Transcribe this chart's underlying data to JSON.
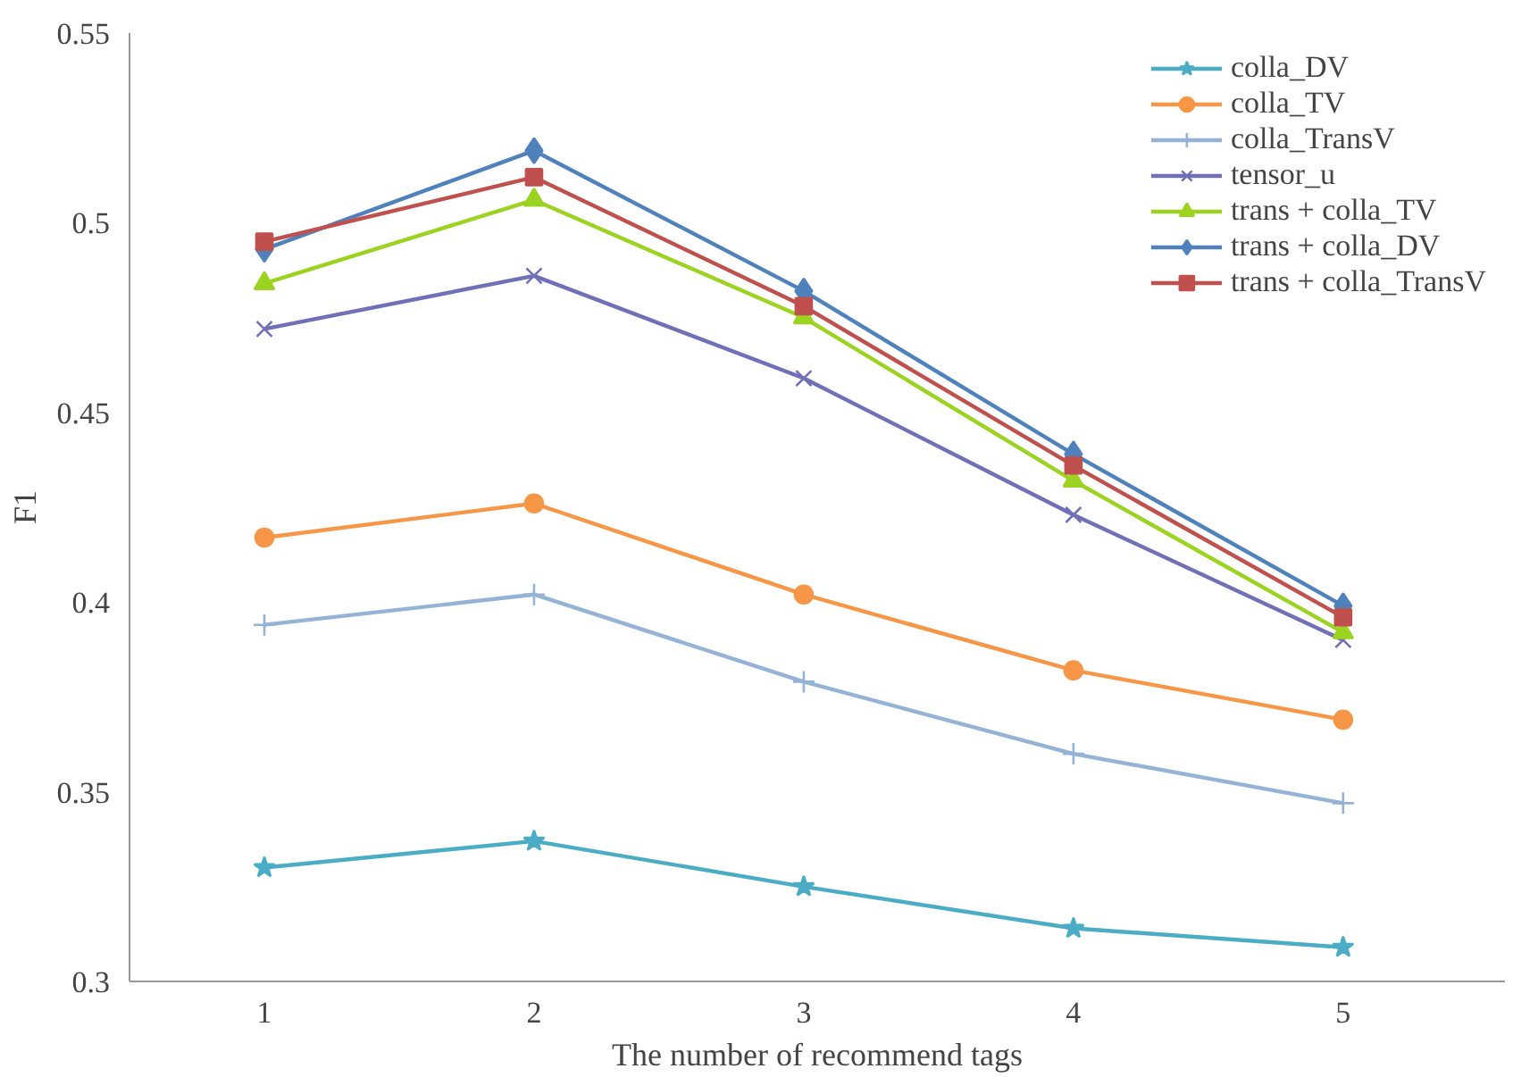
{
  "chart_data": {
    "type": "line",
    "xlabel": "The number of recommend tags",
    "ylabel": "F1",
    "categories": [
      "1",
      "2",
      "3",
      "4",
      "5"
    ],
    "ylim": [
      0.3,
      0.55
    ],
    "yticks": [
      0.3,
      0.35,
      0.4,
      0.45,
      0.5,
      0.55
    ],
    "grid": false,
    "legend": "top right",
    "series": [
      {
        "name": "colla_DV",
        "color": "#4bacc6",
        "marker": "star",
        "values": [
          0.33,
          0.337,
          0.325,
          0.314,
          0.309
        ]
      },
      {
        "name": "colla_TV",
        "color": "#f79646",
        "marker": "circle",
        "values": [
          0.417,
          0.426,
          0.402,
          0.382,
          0.369
        ]
      },
      {
        "name": "colla_TransV",
        "color": "#95b3d7",
        "marker": "cross",
        "values": [
          0.394,
          0.402,
          0.379,
          0.36,
          0.347
        ]
      },
      {
        "name": "tensor_u",
        "color": "#7070b8",
        "marker": "x",
        "values": [
          0.472,
          0.486,
          0.459,
          0.423,
          0.39
        ]
      },
      {
        "name": "trans + colla_TV",
        "color": "#9bd320",
        "marker": "triangle",
        "values": [
          0.484,
          0.506,
          0.475,
          0.432,
          0.392
        ]
      },
      {
        "name": "trans + colla_DV",
        "color": "#4f81bd",
        "marker": "diamond",
        "values": [
          0.493,
          0.519,
          0.482,
          0.439,
          0.399
        ]
      },
      {
        "name": "trans + colla_TransV",
        "color": "#c0504d",
        "marker": "square",
        "values": [
          0.495,
          0.512,
          0.478,
          0.436,
          0.396
        ]
      }
    ]
  }
}
